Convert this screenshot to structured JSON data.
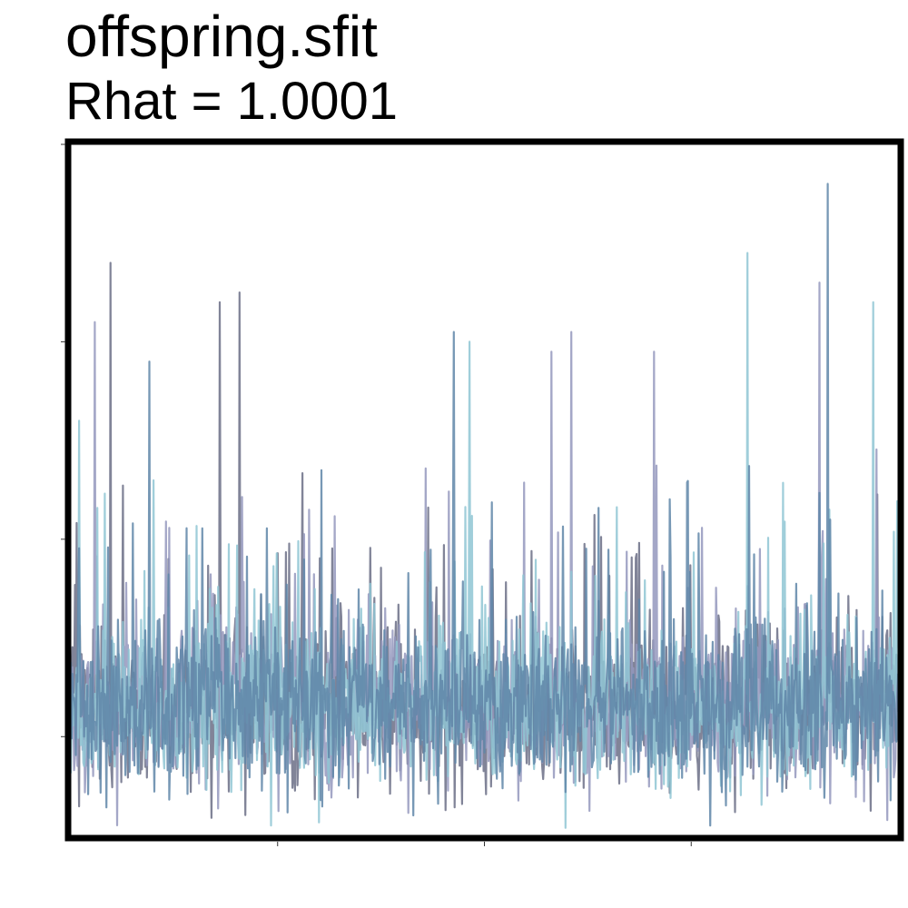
{
  "chart_data": {
    "type": "line",
    "title": "offspring.sfit",
    "subtitle": "Rhat = 1.0001",
    "xlabel": "",
    "ylabel": "",
    "xlim": [
      0,
      1000
    ],
    "ylim": [
      0,
      3.5
    ],
    "grid": false,
    "legend": "none",
    "n_chains": 4,
    "chain_colors": [
      "#6b6e86",
      "#9498bd",
      "#8fc6d4",
      "#5f86a8"
    ],
    "baseline": 0.65,
    "spikes": [
      {
        "x": 10,
        "y": 2.1
      },
      {
        "x": 29,
        "y": 2.6
      },
      {
        "x": 48,
        "y": 2.9
      },
      {
        "x": 95,
        "y": 2.4
      },
      {
        "x": 180,
        "y": 2.7
      },
      {
        "x": 204,
        "y": 2.75
      },
      {
        "x": 303,
        "y": 1.85
      },
      {
        "x": 463,
        "y": 2.55
      },
      {
        "x": 482,
        "y": 2.5
      },
      {
        "x": 581,
        "y": 2.45
      },
      {
        "x": 605,
        "y": 2.55
      },
      {
        "x": 705,
        "y": 2.45
      },
      {
        "x": 818,
        "y": 2.95
      },
      {
        "x": 915,
        "y": 3.3
      },
      {
        "x": 905,
        "y": 2.8
      },
      {
        "x": 970,
        "y": 2.7
      }
    ]
  }
}
